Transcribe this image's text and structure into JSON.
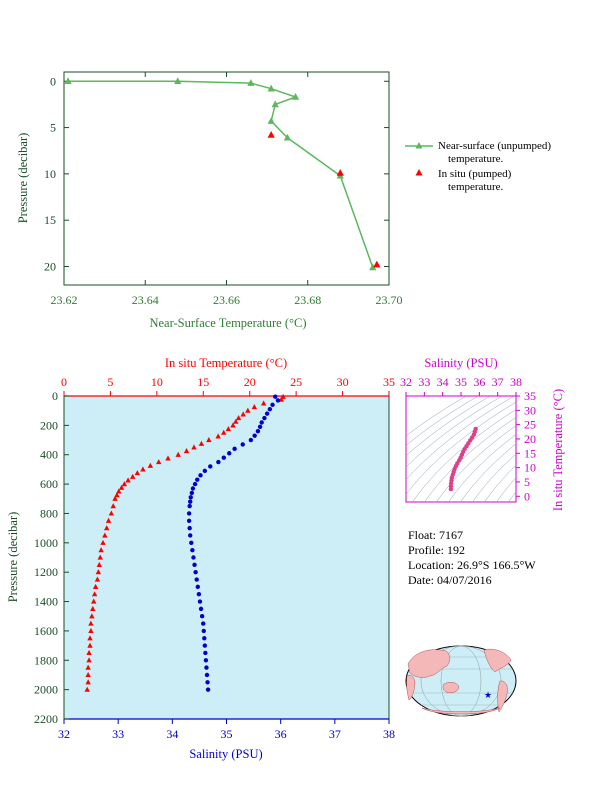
{
  "colors": {
    "green": "#5cb85c",
    "axis_green": "#2e7d32",
    "axis_dark": "#1b4d2a",
    "red": "#ff0000",
    "blue": "#0000cc",
    "magenta": "#cc00cc",
    "panel_bg": "#cdeef7",
    "land": "#f4b8b8"
  },
  "info": {
    "float_line": "Float:  7167",
    "profile_line": "Profile:  192",
    "location_line": "Location:  26.9°S  166.5°W",
    "date_line": "Date:  04/07/2016"
  },
  "footer_text": "",
  "chart_data": [
    {
      "type": "line",
      "xlabel": "Near-Surface Temperature (°C)",
      "ylabel": "Pressure (decibar)",
      "xlim": [
        23.62,
        23.7
      ],
      "ylim": [
        22,
        -1
      ],
      "x_ticks": [
        "23.62",
        "23.64",
        "23.66",
        "23.68",
        "23.70"
      ],
      "y_ticks": [
        "0",
        "5",
        "10",
        "15",
        "20"
      ],
      "legend_position": "right",
      "grid": false,
      "series": [
        {
          "name": "Near-surface (unpumped) temperature.",
          "marker": "triangle",
          "color": "#5cb85c",
          "points": [
            [
              23.621,
              0.0
            ],
            [
              23.648,
              0.0
            ],
            [
              23.666,
              0.2
            ],
            [
              23.671,
              0.8
            ],
            [
              23.677,
              1.7
            ],
            [
              23.672,
              2.5
            ],
            [
              23.671,
              4.3
            ],
            [
              23.675,
              6.1
            ],
            [
              23.688,
              10.2
            ],
            [
              23.696,
              20.1
            ]
          ]
        },
        {
          "name": "In situ (pumped) temperature.",
          "marker": "triangle",
          "color": "#ff0000",
          "points": [
            [
              23.671,
              5.8
            ],
            [
              23.688,
              9.9
            ],
            [
              23.697,
              19.8
            ]
          ]
        }
      ]
    },
    {
      "type": "scatter",
      "xlabel_top": "In situ Temperature (°C)",
      "xlabel_bottom": "Salinity (PSU)",
      "ylabel": "Pressure (decibar)",
      "temp_lim": [
        0,
        35
      ],
      "sal_lim": [
        32,
        38
      ],
      "ylim": [
        2200,
        0
      ],
      "temp_ticks": [
        "0",
        "5",
        "10",
        "15",
        "20",
        "25",
        "30",
        "35"
      ],
      "sal_ticks": [
        "32",
        "33",
        "34",
        "35",
        "36",
        "37",
        "38"
      ],
      "y_ticks": [
        "0",
        "200",
        "400",
        "600",
        "800",
        "1000",
        "1200",
        "1400",
        "1600",
        "1800",
        "2000",
        "2200"
      ],
      "temperature_profile": [
        [
          23.6,
          5
        ],
        [
          23.4,
          25
        ],
        [
          21.5,
          50
        ],
        [
          20.5,
          75
        ],
        [
          19.8,
          100
        ],
        [
          19.3,
          125
        ],
        [
          18.8,
          150
        ],
        [
          18.5,
          175
        ],
        [
          18.2,
          200
        ],
        [
          17.7,
          225
        ],
        [
          17.2,
          250
        ],
        [
          16.6,
          275
        ],
        [
          15.6,
          300
        ],
        [
          14.8,
          325
        ],
        [
          14.0,
          350
        ],
        [
          13.2,
          375
        ],
        [
          12.3,
          400
        ],
        [
          11.2,
          425
        ],
        [
          10.2,
          450
        ],
        [
          9.3,
          475
        ],
        [
          8.5,
          500
        ],
        [
          7.9,
          525
        ],
        [
          7.4,
          550
        ],
        [
          6.9,
          575
        ],
        [
          6.5,
          600
        ],
        [
          6.2,
          625
        ],
        [
          5.9,
          650
        ],
        [
          5.7,
          675
        ],
        [
          5.5,
          700
        ],
        [
          5.3,
          750
        ],
        [
          5.1,
          800
        ],
        [
          4.8,
          850
        ],
        [
          4.6,
          900
        ],
        [
          4.4,
          950
        ],
        [
          4.2,
          1000
        ],
        [
          4.0,
          1050
        ],
        [
          3.9,
          1100
        ],
        [
          3.8,
          1150
        ],
        [
          3.7,
          1200
        ],
        [
          3.6,
          1250
        ],
        [
          3.4,
          1300
        ],
        [
          3.3,
          1350
        ],
        [
          3.2,
          1400
        ],
        [
          3.1,
          1450
        ],
        [
          3.0,
          1500
        ],
        [
          2.9,
          1550
        ],
        [
          2.9,
          1600
        ],
        [
          2.8,
          1650
        ],
        [
          2.8,
          1700
        ],
        [
          2.7,
          1750
        ],
        [
          2.7,
          1800
        ],
        [
          2.6,
          1850
        ],
        [
          2.6,
          1900
        ],
        [
          2.6,
          1950
        ],
        [
          2.5,
          2000
        ]
      ],
      "salinity_profile": [
        [
          35.9,
          5
        ],
        [
          35.95,
          30
        ],
        [
          35.85,
          60
        ],
        [
          35.8,
          90
        ],
        [
          35.75,
          120
        ],
        [
          35.7,
          150
        ],
        [
          35.65,
          180
        ],
        [
          35.62,
          210
        ],
        [
          35.58,
          240
        ],
        [
          35.52,
          270
        ],
        [
          35.45,
          300
        ],
        [
          35.3,
          330
        ],
        [
          35.15,
          360
        ],
        [
          35.05,
          390
        ],
        [
          34.95,
          420
        ],
        [
          34.85,
          450
        ],
        [
          34.7,
          480
        ],
        [
          34.6,
          510
        ],
        [
          34.52,
          540
        ],
        [
          34.46,
          570
        ],
        [
          34.42,
          600
        ],
        [
          34.38,
          630
        ],
        [
          34.36,
          660
        ],
        [
          34.34,
          690
        ],
        [
          34.33,
          720
        ],
        [
          34.32,
          750
        ],
        [
          34.31,
          800
        ],
        [
          34.31,
          850
        ],
        [
          34.32,
          900
        ],
        [
          34.33,
          950
        ],
        [
          34.35,
          1000
        ],
        [
          34.37,
          1050
        ],
        [
          34.39,
          1100
        ],
        [
          34.41,
          1150
        ],
        [
          34.43,
          1200
        ],
        [
          34.45,
          1250
        ],
        [
          34.47,
          1300
        ],
        [
          34.49,
          1350
        ],
        [
          34.51,
          1400
        ],
        [
          34.53,
          1450
        ],
        [
          34.55,
          1500
        ],
        [
          34.57,
          1550
        ],
        [
          34.58,
          1600
        ],
        [
          34.59,
          1650
        ],
        [
          34.6,
          1700
        ],
        [
          34.61,
          1750
        ],
        [
          34.62,
          1800
        ],
        [
          34.63,
          1850
        ],
        [
          34.64,
          1900
        ],
        [
          34.65,
          1950
        ],
        [
          34.66,
          2000
        ]
      ]
    },
    {
      "type": "scatter",
      "xlabel": "Salinity (PSU)",
      "ylabel": "In situ Temperature (°C)",
      "xlim": [
        32,
        38
      ],
      "ylim": [
        -2,
        35
      ],
      "x_ticks": [
        "32",
        "33",
        "34",
        "35",
        "36",
        "37",
        "38"
      ],
      "y_ticks": [
        "0",
        "5",
        "10",
        "15",
        "20",
        "25",
        "30",
        "35"
      ],
      "points": [
        [
          34.45,
          2.5
        ],
        [
          34.45,
          3.5
        ],
        [
          34.46,
          4.5
        ],
        [
          34.48,
          5.5
        ],
        [
          34.5,
          6.5
        ],
        [
          34.55,
          7.5
        ],
        [
          34.6,
          8.5
        ],
        [
          34.65,
          9.5
        ],
        [
          34.72,
          10.5
        ],
        [
          34.8,
          11.5
        ],
        [
          34.9,
          12.5
        ],
        [
          34.98,
          13.5
        ],
        [
          35.05,
          14.5
        ],
        [
          35.12,
          15.5
        ],
        [
          35.2,
          16.5
        ],
        [
          35.3,
          17.5
        ],
        [
          35.4,
          18.5
        ],
        [
          35.5,
          19.5
        ],
        [
          35.6,
          20.5
        ],
        [
          35.7,
          21.5
        ],
        [
          35.75,
          22.5
        ],
        [
          35.8,
          23.5
        ]
      ]
    }
  ]
}
